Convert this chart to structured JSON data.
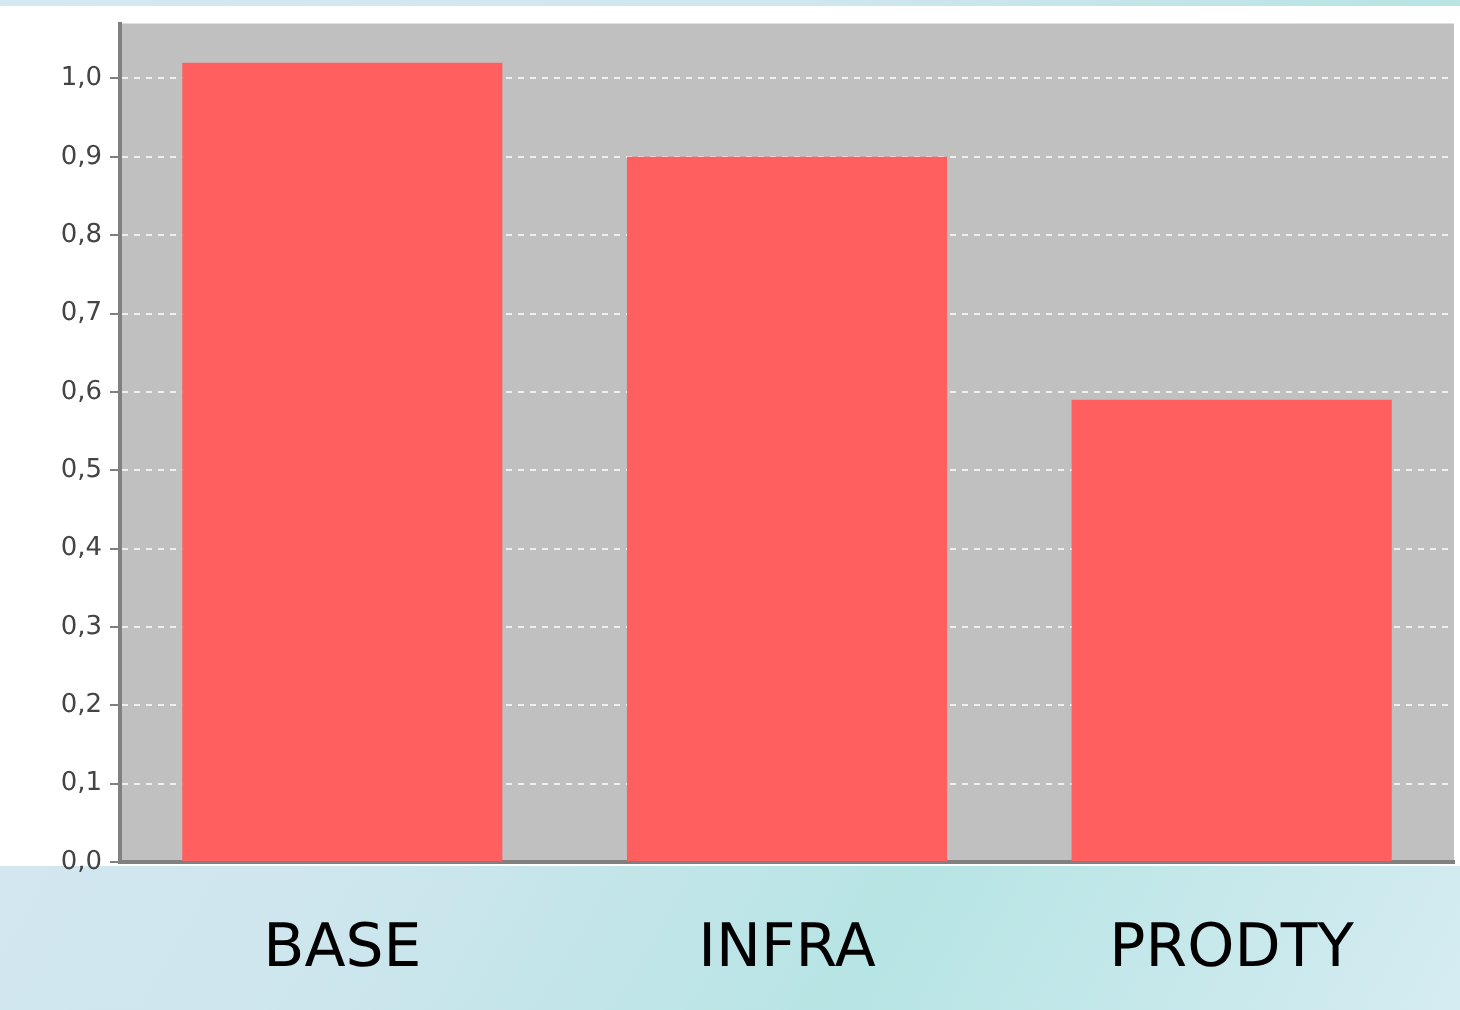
{
  "chart_data": {
    "type": "bar",
    "categories": [
      "BASE",
      "INFRA",
      "PRODTY"
    ],
    "values": [
      1.02,
      0.9,
      0.59
    ],
    "color": "#ff5f5f",
    "ylim": [
      0,
      1.07
    ],
    "yticks": [
      {
        "value": 0,
        "label": "0,0"
      },
      {
        "value": 0.1,
        "label": "0,1"
      },
      {
        "value": 0.2,
        "label": "0,2"
      },
      {
        "value": 0.3,
        "label": "0,3"
      },
      {
        "value": 0.4,
        "label": "0,4"
      },
      {
        "value": 0.5,
        "label": "0,5"
      },
      {
        "value": 0.6,
        "label": "0,6"
      },
      {
        "value": 0.7,
        "label": "0,7"
      },
      {
        "value": 0.8,
        "label": "0,8"
      },
      {
        "value": 0.9,
        "label": "0,9"
      },
      {
        "value": 1,
        "label": "1,0"
      }
    ],
    "grid": "y",
    "legend": false
  }
}
